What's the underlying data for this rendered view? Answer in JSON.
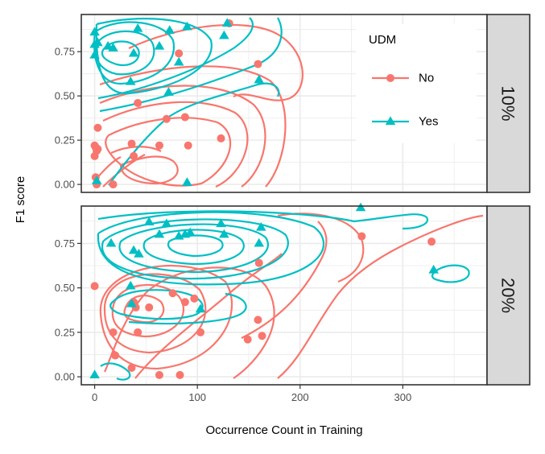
{
  "chart_data": {
    "type": "scatter",
    "xlabel": "Occurrence Count in Training",
    "ylabel": "F1 score",
    "xlim": [
      -13,
      382
    ],
    "ylim": [
      -0.045,
      0.96
    ],
    "x_ticks": [
      0,
      100,
      200,
      300
    ],
    "x_tick_labels": [
      "0",
      "100",
      "200",
      "300"
    ],
    "y_ticks": [
      0,
      0.25,
      0.5,
      0.75
    ],
    "y_tick_labels": [
      "0.00",
      "0.25",
      "0.50",
      "0.75"
    ],
    "grid": true,
    "legend": {
      "title": "UDM",
      "placement": "inside top-right of upper panel",
      "entries": [
        {
          "label": "No",
          "color": "#F8766D",
          "shape": "circle"
        },
        {
          "label": "Yes",
          "color": "#00BFC4",
          "shape": "triangle"
        }
      ]
    },
    "facets": [
      {
        "label": "10%",
        "series": [
          {
            "name": "No",
            "color": "#F8766D",
            "shape": "circle",
            "points": [
              [
                0,
                0.22
              ],
              [
                1,
                0.21
              ],
              [
                2,
                0.19
              ],
              [
                0,
                0.16
              ],
              [
                1,
                0.04
              ],
              [
                2,
                0.0
              ],
              [
                3,
                0.32
              ],
              [
                3,
                0.2
              ],
              [
                18,
                0.0
              ],
              [
                36,
                0.23
              ],
              [
                38,
                0.16
              ],
              [
                42,
                0.46
              ],
              [
                63,
                0.22
              ],
              [
                70,
                0.37
              ],
              [
                82,
                0.74
              ],
              [
                88,
                0.38
              ],
              [
                91,
                0.22
              ],
              [
                123,
                0.26
              ],
              [
                131,
                0.91
              ],
              [
                159,
                0.68
              ]
            ]
          },
          {
            "name": "Yes",
            "color": "#00BFC4",
            "shape": "triangle",
            "points": [
              [
                0,
                0.86
              ],
              [
                0,
                0.79
              ],
              [
                0,
                0.73
              ],
              [
                2,
                0.02
              ],
              [
                3,
                0.8
              ],
              [
                13,
                0.78
              ],
              [
                18,
                0.77
              ],
              [
                35,
                0.58
              ],
              [
                38,
                0.74
              ],
              [
                42,
                0.88
              ],
              [
                63,
                0.78
              ],
              [
                72,
                0.52
              ],
              [
                73,
                0.87
              ],
              [
                82,
                0.69
              ],
              [
                90,
                0.89
              ],
              [
                90,
                0.01
              ],
              [
                126,
                0.84
              ],
              [
                129,
                0.91
              ],
              [
                160,
                0.59
              ]
            ]
          }
        ]
      },
      {
        "label": "20%",
        "series": [
          {
            "name": "No",
            "color": "#F8766D",
            "shape": "circle",
            "points": [
              [
                0,
                0.51
              ],
              [
                18,
                0.25
              ],
              [
                20,
                0.12
              ],
              [
                36,
                0.05
              ],
              [
                38,
                0.42
              ],
              [
                40,
                0.39
              ],
              [
                42,
                0.25
              ],
              [
                53,
                0.39
              ],
              [
                63,
                0.01
              ],
              [
                76,
                0.47
              ],
              [
                83,
                0.01
              ],
              [
                88,
                0.42
              ],
              [
                97,
                0.44
              ],
              [
                103,
                0.25
              ],
              [
                149,
                0.21
              ],
              [
                159,
                0.32
              ],
              [
                160,
                0.64
              ],
              [
                163,
                0.23
              ],
              [
                260,
                0.79
              ],
              [
                328,
                0.76
              ]
            ]
          },
          {
            "name": "Yes",
            "color": "#00BFC4",
            "shape": "triangle",
            "points": [
              [
                0,
                0.01
              ],
              [
                16,
                0.75
              ],
              [
                35,
                0.51
              ],
              [
                36,
                0.41
              ],
              [
                38,
                0.71
              ],
              [
                43,
                0.69
              ],
              [
                53,
                0.87
              ],
              [
                63,
                0.8
              ],
              [
                70,
                0.86
              ],
              [
                82,
                0.79
              ],
              [
                88,
                0.8
              ],
              [
                93,
                0.81
              ],
              [
                103,
                0.38
              ],
              [
                123,
                0.86
              ],
              [
                126,
                0.8
              ],
              [
                160,
                0.75
              ],
              [
                162,
                0.84
              ],
              [
                259,
                0.95
              ],
              [
                330,
                0.6
              ]
            ]
          }
        ]
      }
    ]
  }
}
